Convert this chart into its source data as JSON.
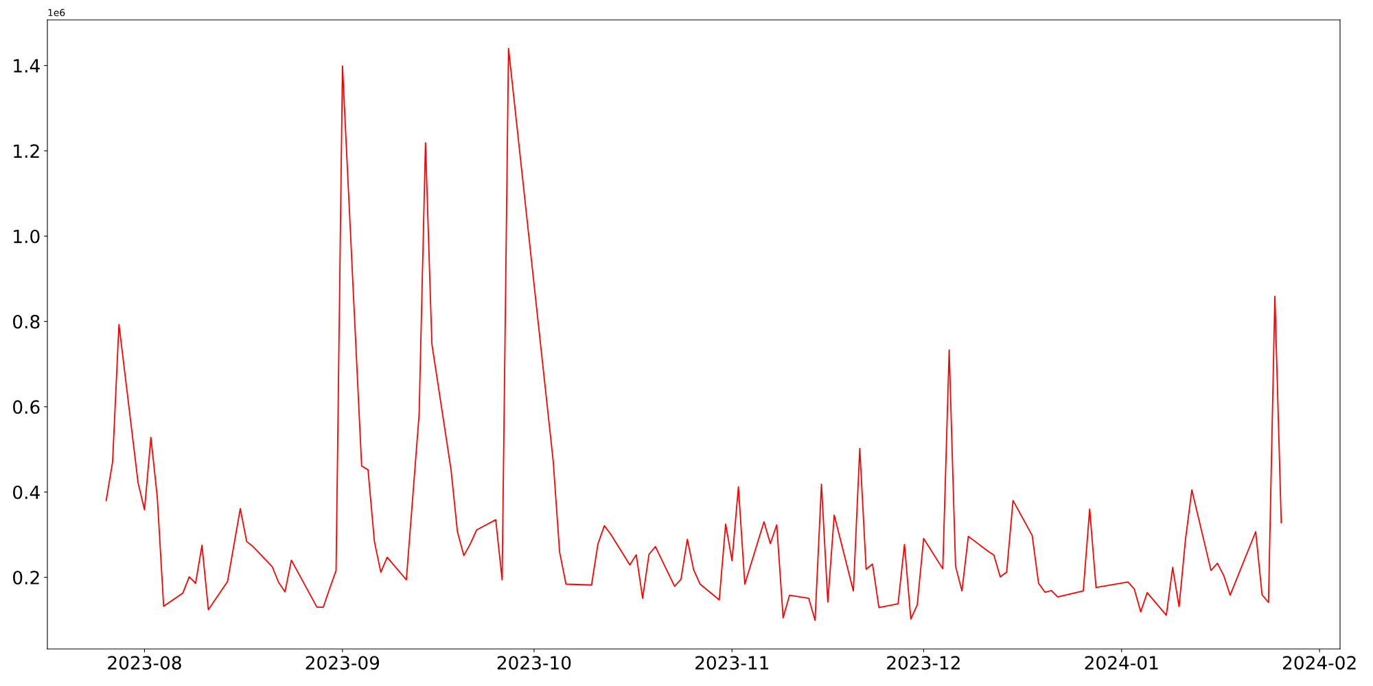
{
  "chart_data": {
    "type": "line",
    "x": [
      "2023-07-26",
      "2023-07-27",
      "2023-07-28",
      "2023-07-31",
      "2023-08-01",
      "2023-08-02",
      "2023-08-03",
      "2023-08-04",
      "2023-08-07",
      "2023-08-08",
      "2023-08-09",
      "2023-08-10",
      "2023-08-11",
      "2023-08-14",
      "2023-08-16",
      "2023-08-17",
      "2023-08-18",
      "2023-08-21",
      "2023-08-22",
      "2023-08-23",
      "2023-08-24",
      "2023-08-28",
      "2023-08-29",
      "2023-08-30",
      "2023-08-31",
      "2023-09-01",
      "2023-09-04",
      "2023-09-05",
      "2023-09-06",
      "2023-09-07",
      "2023-09-08",
      "2023-09-11",
      "2023-09-13",
      "2023-09-14",
      "2023-09-15",
      "2023-09-18",
      "2023-09-19",
      "2023-09-20",
      "2023-09-21",
      "2023-09-22",
      "2023-09-25",
      "2023-09-26",
      "2023-09-27",
      "2023-10-04",
      "2023-10-05",
      "2023-10-06",
      "2023-10-10",
      "2023-10-11",
      "2023-10-12",
      "2023-10-13",
      "2023-10-16",
      "2023-10-17",
      "2023-10-18",
      "2023-10-19",
      "2023-10-20",
      "2023-10-23",
      "2023-10-24",
      "2023-10-25",
      "2023-10-26",
      "2023-10-27",
      "2023-10-30",
      "2023-10-31",
      "2023-11-01",
      "2023-11-02",
      "2023-11-03",
      "2023-11-06",
      "2023-11-07",
      "2023-11-08",
      "2023-11-09",
      "2023-11-10",
      "2023-11-13",
      "2023-11-14",
      "2023-11-15",
      "2023-11-16",
      "2023-11-17",
      "2023-11-20",
      "2023-11-21",
      "2023-11-22",
      "2023-11-23",
      "2023-11-24",
      "2023-11-27",
      "2023-11-28",
      "2023-11-29",
      "2023-11-30",
      "2023-12-01",
      "2023-12-04",
      "2023-12-05",
      "2023-12-06",
      "2023-12-07",
      "2023-12-08",
      "2023-12-11",
      "2023-12-12",
      "2023-12-13",
      "2023-12-14",
      "2023-12-15",
      "2023-12-18",
      "2023-12-19",
      "2023-12-20",
      "2023-12-21",
      "2023-12-22",
      "2023-12-26",
      "2023-12-27",
      "2023-12-28",
      "2024-01-02",
      "2024-01-03",
      "2024-01-04",
      "2024-01-05",
      "2024-01-08",
      "2024-01-09",
      "2024-01-10",
      "2024-01-11",
      "2024-01-12",
      "2024-01-15",
      "2024-01-16",
      "2024-01-17",
      "2024-01-18",
      "2024-01-22",
      "2024-01-23",
      "2024-01-24",
      "2024-01-25",
      "2024-01-26"
    ],
    "series": [
      {
        "color": "#ff0000",
        "values": [
          0.38,
          0.47,
          0.793,
          0.421,
          0.358,
          0.528,
          0.388,
          0.132,
          0.163,
          0.201,
          0.186,
          0.275,
          0.124,
          0.19,
          0.361,
          0.284,
          0.272,
          0.225,
          0.188,
          0.166,
          0.24,
          0.13,
          0.13,
          0.174,
          0.216,
          1.399,
          0.461,
          0.452,
          0.284,
          0.212,
          0.247,
          0.194,
          0.581,
          1.219,
          0.747,
          0.452,
          0.307,
          0.251,
          0.278,
          0.311,
          0.335,
          0.194,
          1.44,
          0.472,
          0.259,
          0.184,
          0.182,
          0.278,
          0.321,
          0.301,
          0.229,
          0.253,
          0.151,
          0.254,
          0.272,
          0.179,
          0.195,
          0.289,
          0.217,
          0.184,
          0.147,
          0.325,
          0.239,
          0.412,
          0.184,
          0.33,
          0.279,
          0.323,
          0.105,
          0.158,
          0.151,
          0.099,
          0.418,
          0.142,
          0.346,
          0.168,
          0.502,
          0.219,
          0.231,
          0.129,
          0.138,
          0.277,
          0.102,
          0.135,
          0.291,
          0.22,
          0.733,
          0.226,
          0.168,
          0.296,
          0.262,
          0.252,
          0.201,
          0.212,
          0.38,
          0.298,
          0.186,
          0.165,
          0.169,
          0.154,
          0.168,
          0.36,
          0.176,
          0.189,
          0.172,
          0.119,
          0.164,
          0.111,
          0.223,
          0.131,
          0.288,
          0.405,
          0.216,
          0.233,
          0.204,
          0.158,
          0.307,
          0.159,
          0.141,
          0.859,
          0.328
        ]
      }
    ],
    "xlim": [
      "2023-07-16T19:00",
      "2024-02-04T05:00"
    ],
    "xticks": [
      {
        "value": "2023-08-01",
        "label": "2023-08"
      },
      {
        "value": "2023-09-01",
        "label": "2023-09"
      },
      {
        "value": "2023-10-01",
        "label": "2023-10"
      },
      {
        "value": "2023-11-01",
        "label": "2023-11"
      },
      {
        "value": "2023-12-01",
        "label": "2023-12"
      },
      {
        "value": "2024-01-01",
        "label": "2024-01"
      },
      {
        "value": "2024-02-01",
        "label": "2024-02"
      }
    ],
    "ylim": [
      0.032,
      1.507
    ],
    "yticks": [
      0.2,
      0.4,
      0.6,
      0.8,
      {
        "value": 1.0,
        "label": "1.0"
      },
      1.2,
      1.4
    ],
    "annotations": [
      "1e6"
    ],
    "grid": false,
    "legend": false
  }
}
